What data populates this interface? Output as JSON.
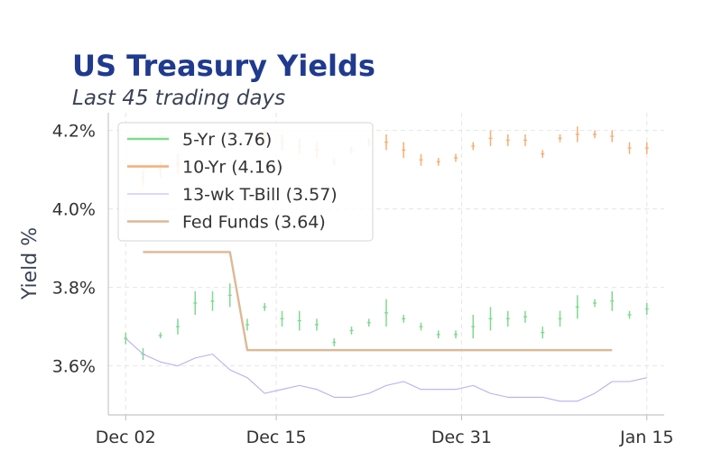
{
  "chart_data": {
    "type": "line",
    "title": "US Treasury Yields",
    "subtitle": "Last 45 trading days",
    "ylabel": "Yield %",
    "xlabel": "",
    "x_range": [
      -1.5,
      46.5
    ],
    "ylim": [
      3.475,
      4.245
    ],
    "yticks": [
      3.6,
      3.8,
      4.0,
      4.2
    ],
    "ytick_labels": [
      "3.6%",
      "3.8%",
      "4.0%",
      "4.2%"
    ],
    "xticks": [
      0,
      13,
      29,
      45
    ],
    "xtick_labels": [
      "Dec 02",
      "Dec 15",
      "Dec 31",
      "Jan 15"
    ],
    "grid": true,
    "legend_position": "top-left",
    "series": [
      {
        "name": "5-Yr (3.76)",
        "kind": "range",
        "color": "#7fd98f",
        "x": [
          0,
          1.5,
          3,
          4.5,
          6,
          7.5,
          9,
          10.5,
          12,
          13.5,
          15,
          16.5,
          18,
          19.5,
          21,
          22.5,
          24,
          25.5,
          27,
          28.5,
          30,
          31.5,
          33,
          34.5,
          36,
          37.5,
          39,
          40.5,
          42,
          43.5,
          45
        ],
        "low": [
          3.655,
          3.615,
          3.67,
          3.68,
          3.73,
          3.74,
          3.75,
          3.69,
          3.74,
          3.7,
          3.69,
          3.69,
          3.65,
          3.68,
          3.7,
          3.7,
          3.71,
          3.69,
          3.67,
          3.67,
          3.67,
          3.69,
          3.7,
          3.71,
          3.67,
          3.7,
          3.72,
          3.75,
          3.74,
          3.72,
          3.73
        ],
        "high": [
          3.685,
          3.645,
          3.685,
          3.72,
          3.79,
          3.79,
          3.81,
          3.72,
          3.76,
          3.74,
          3.74,
          3.72,
          3.67,
          3.7,
          3.72,
          3.77,
          3.73,
          3.71,
          3.69,
          3.69,
          3.73,
          3.75,
          3.74,
          3.74,
          3.7,
          3.74,
          3.78,
          3.77,
          3.79,
          3.74,
          3.76
        ]
      },
      {
        "name": "10-Yr (4.16)",
        "kind": "range",
        "color": "#f6ae73",
        "x": [
          1.5,
          3,
          4.5,
          12,
          13.5,
          15,
          16.5,
          18,
          19.5,
          21,
          22.5,
          24,
          25.5,
          27,
          28.5,
          30,
          31.5,
          33,
          34.5,
          36,
          37.5,
          39,
          40.5,
          42,
          43.5,
          45
        ],
        "low": [
          4.06,
          4.08,
          4.09,
          4.15,
          4.15,
          4.14,
          4.13,
          4.11,
          4.14,
          4.16,
          4.15,
          4.13,
          4.11,
          4.11,
          4.12,
          4.15,
          4.16,
          4.16,
          4.16,
          4.13,
          4.17,
          4.17,
          4.18,
          4.17,
          4.14,
          4.14
        ],
        "high": [
          4.1,
          4.12,
          4.14,
          4.2,
          4.19,
          4.18,
          4.17,
          4.13,
          4.16,
          4.18,
          4.19,
          4.17,
          4.14,
          4.13,
          4.14,
          4.17,
          4.2,
          4.19,
          4.19,
          4.15,
          4.19,
          4.21,
          4.2,
          4.2,
          4.17,
          4.17
        ]
      },
      {
        "name": "13-wk T-Bill (3.57)",
        "kind": "line",
        "color": "#b7aff0",
        "x": [
          0,
          1.5,
          3,
          4.5,
          6,
          7.5,
          9,
          10.5,
          12,
          13.5,
          15,
          16.5,
          18,
          19.5,
          21,
          22.5,
          24,
          25.5,
          27,
          28.5,
          30,
          31.5,
          33,
          34.5,
          36,
          37.5,
          39,
          40.5,
          42,
          43.5,
          45
        ],
        "values": [
          3.67,
          3.63,
          3.61,
          3.6,
          3.62,
          3.63,
          3.59,
          3.57,
          3.53,
          3.54,
          3.55,
          3.54,
          3.52,
          3.52,
          3.53,
          3.55,
          3.56,
          3.54,
          3.54,
          3.54,
          3.55,
          3.53,
          3.52,
          3.52,
          3.52,
          3.51,
          3.51,
          3.53,
          3.56,
          3.56,
          3.57
        ]
      },
      {
        "name": "Fed Funds (3.64)",
        "kind": "line",
        "color": "#deb894",
        "x": [
          1.5,
          9,
          10.5,
          42
        ],
        "values": [
          3.89,
          3.89,
          3.64,
          3.64
        ]
      }
    ]
  }
}
